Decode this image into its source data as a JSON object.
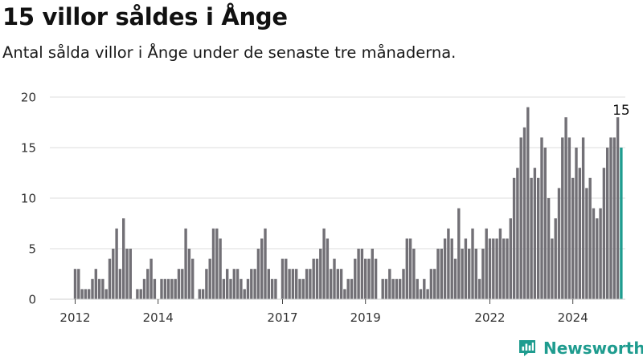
{
  "title": "15 villor såldes i Ånge",
  "subtitle": "Antal sålda villor i Ånge under de senaste tre månaderna.",
  "brand": {
    "name": "Newsworthy",
    "icon": "newsworthy-logo-icon",
    "color": "#1f9c8f"
  },
  "chart_data": {
    "type": "bar",
    "title": "15 villor såldes i Ånge",
    "subtitle": "Antal sålda villor i Ånge under de senaste tre månaderna.",
    "xlabel": "",
    "ylabel": "",
    "start": "2012-01",
    "x_ticks": [
      "2012",
      "2014",
      "2017",
      "2019",
      "2022",
      "2024"
    ],
    "x_tick_dates": [
      "2012-01",
      "2014-01",
      "2017-01",
      "2019-01",
      "2022-01",
      "2024-01"
    ],
    "y_ticks": [
      0,
      5,
      10,
      15,
      20
    ],
    "ylim": [
      0,
      20
    ],
    "grid": true,
    "bar_color": "#727076",
    "highlight_color": "#1f9c8f",
    "highlight_label": "15",
    "values": [
      3,
      3,
      1,
      1,
      1,
      2,
      3,
      2,
      2,
      1,
      4,
      5,
      7,
      3,
      8,
      5,
      5,
      0,
      1,
      1,
      2,
      3,
      4,
      2,
      0,
      2,
      2,
      2,
      2,
      2,
      3,
      3,
      7,
      5,
      4,
      0,
      1,
      1,
      3,
      4,
      7,
      7,
      6,
      2,
      3,
      2,
      3,
      3,
      2,
      1,
      2,
      3,
      3,
      5,
      6,
      7,
      3,
      2,
      2,
      0,
      4,
      4,
      3,
      3,
      3,
      2,
      2,
      3,
      3,
      4,
      4,
      5,
      7,
      6,
      3,
      4,
      3,
      3,
      1,
      2,
      2,
      4,
      5,
      5,
      4,
      4,
      5,
      4,
      0,
      2,
      2,
      3,
      2,
      2,
      2,
      3,
      6,
      6,
      5,
      2,
      1,
      2,
      1,
      3,
      3,
      5,
      5,
      6,
      7,
      6,
      4,
      9,
      5,
      6,
      5,
      7,
      5,
      2,
      5,
      7,
      6,
      6,
      6,
      7,
      6,
      6,
      8,
      12,
      13,
      16,
      17,
      19,
      12,
      13,
      12,
      16,
      15,
      10,
      6,
      8,
      11,
      16,
      18,
      16,
      12,
      15,
      13,
      16,
      11,
      12,
      9,
      8,
      9,
      13,
      15,
      16,
      16,
      18,
      15
    ]
  }
}
